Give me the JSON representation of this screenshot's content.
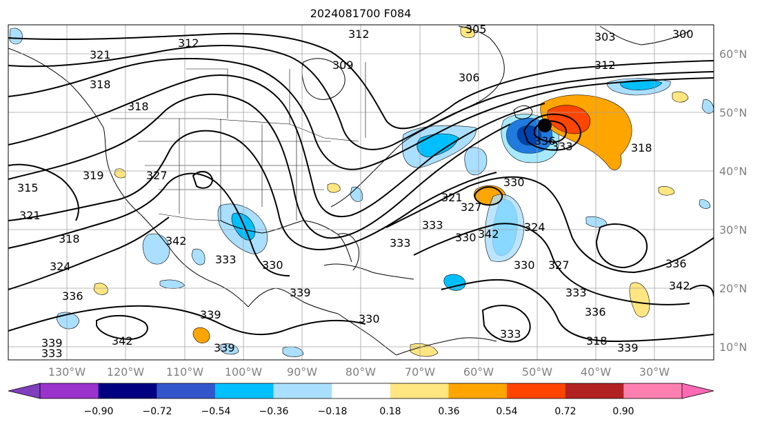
{
  "title": "2024081700 F084",
  "lon_ticks": [
    "130°W",
    "120°W",
    "110°W",
    "100°W",
    "90°W",
    "80°W",
    "70°W",
    "60°W",
    "50°W",
    "40°W",
    "30°W"
  ],
  "lat_ticks": [
    "60°N",
    "50°N",
    "40°N",
    "30°N",
    "20°N",
    "10°N"
  ],
  "colorbar": {
    "colors": [
      "#7f3fbf",
      "#9933cc",
      "#000080",
      "#3355cc",
      "#00bfff",
      "#aadfff",
      "#ffffff",
      "#ffe680",
      "#ffa500",
      "#ff4500",
      "#b22222",
      "#ff80b0",
      "#ff69b4"
    ],
    "labels": [
      "−0.90",
      "−0.72",
      "−0.54",
      "−0.36",
      "−0.18",
      "0.18",
      "0.36",
      "0.54",
      "0.72",
      "0.90"
    ]
  },
  "contour_labels": [
    "312",
    "312",
    "305",
    "303",
    "300",
    "321",
    "318",
    "309",
    "306",
    "312",
    "318",
    "319",
    "318",
    "315",
    "321",
    "327",
    "318",
    "342",
    "324",
    "336",
    "330",
    "333",
    "321",
    "336",
    "333",
    "330",
    "327",
    "324",
    "333",
    "330",
    "342",
    "339",
    "333",
    "336",
    "330",
    "330",
    "327",
    "333",
    "336",
    "333",
    "339",
    "342",
    "342",
    "339",
    "339",
    "333",
    "318",
    "339"
  ],
  "markers": [
    {
      "name": "low-center-marker",
      "color": "#000000"
    }
  ]
}
